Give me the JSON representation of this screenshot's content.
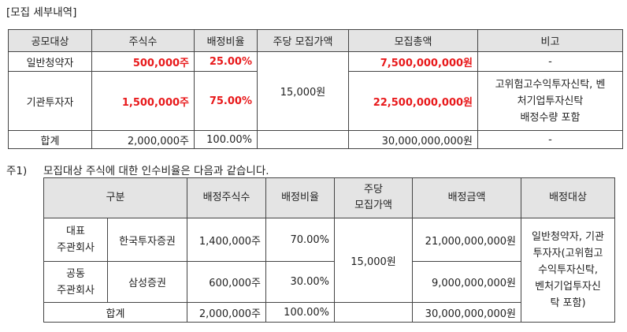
{
  "section_title": "[모집 세부내역]",
  "table1": {
    "headers": [
      "공모대상",
      "주식수",
      "배정비율",
      "주당 모집가액",
      "모집총액",
      "비고"
    ],
    "rows": [
      {
        "target": "일반청약자",
        "shares": "500,000주",
        "ratio": "25.00%",
        "total": "7,500,000,000원",
        "note": "-"
      },
      {
        "target": "기관투자자",
        "shares": "1,500,000주",
        "ratio": "75.00%",
        "total": "22,500,000,000원",
        "note_lines": [
          "고위험고수익투자신탁, 벤",
          "처기업투자신탁",
          "배정수량 포함"
        ]
      },
      {
        "target": "합계",
        "shares": "2,000,000주",
        "ratio": "100.00%",
        "total": "30,000,000,000원",
        "note": "-"
      }
    ],
    "unit_price": "15,000원"
  },
  "footnote": {
    "marker": "주1)",
    "text": "모집대상 주식에 대한 인수비율은 다음과 같습니다."
  },
  "table2": {
    "headers": {
      "category": "구분",
      "shares": "배정주식수",
      "ratio": "배정비율",
      "price_line1": "주당",
      "price_line2": "모집가액",
      "amount": "배정금액",
      "target": "배정대상"
    },
    "rows": [
      {
        "role_line1": "대표",
        "role_line2": "주관회사",
        "company": "한국투자증권",
        "shares": "1,400,000주",
        "ratio": "70.00%",
        "amount": "21,000,000,000원"
      },
      {
        "role_line1": "공동",
        "role_line2": "주관회사",
        "company": "삼성증권",
        "shares": "600,000주",
        "ratio": "30.00%",
        "amount": "9,000,000,000원"
      }
    ],
    "total": {
      "label": "합계",
      "shares": "2,000,000주",
      "ratio": "100.00%",
      "amount": "30,000,000,000원"
    },
    "unit_price": "15,000원",
    "target_lines": [
      "일반청약자, 기관",
      "투자자(고위험고",
      "수익투자신탁,",
      "벤처기업투자신",
      "탁 포함)"
    ]
  }
}
